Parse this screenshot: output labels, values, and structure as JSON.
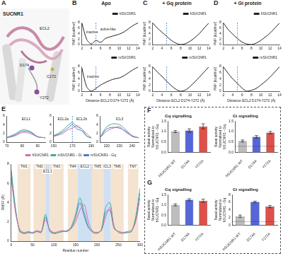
{
  "panel_letters": [
    "A",
    "B",
    "C",
    "D",
    "E",
    "F",
    "G"
  ],
  "structure": {
    "title": "SUCNR1",
    "labels": [
      "ECL2",
      "D174",
      "C172",
      "Y272"
    ]
  },
  "pmf_titles": [
    "Apo",
    "+ Gq protein",
    "+ Gi protein"
  ],
  "chart_data": [
    {
      "type": "line",
      "legend": "top right",
      "x": [
        2,
        3,
        4,
        5,
        6,
        7,
        8,
        9,
        10,
        11,
        12,
        13,
        14
      ],
      "series": [
        {
          "name": "hSUCNR1",
          "color": "#222222",
          "values": [
            7.8,
            2.0,
            0.2,
            1.5,
            0.8,
            2.2,
            2.8,
            3.3,
            3.8,
            4.6,
            5.8,
            7.0,
            7.9
          ]
        }
      ],
      "xlim": [
        2,
        14
      ],
      "xticks": [
        2,
        4,
        6,
        8,
        10,
        12,
        14
      ],
      "ylim": [
        0,
        8
      ],
      "yticks": [
        0,
        2,
        4,
        6,
        8
      ],
      "y_label": "PMF (kcal/mol)",
      "vlines": [
        5
      ],
      "annotations": [
        {
          "text": "inactive",
          "x": 4.2,
          "y": 4.6
        },
        {
          "text": "active-like",
          "x": 7.6,
          "y": 5.6
        }
      ]
    },
    {
      "type": "line",
      "legend": "top right",
      "x": [
        2,
        3,
        4,
        5,
        6,
        7,
        8,
        9,
        10,
        11,
        12,
        13,
        14
      ],
      "series": [
        {
          "name": "mSUCNR1",
          "color": "#222222",
          "values": [
            7.5,
            1.5,
            0.0,
            0.9,
            2.0,
            2.8,
            3.5,
            4.0,
            4.3,
            5.0,
            6.0,
            7.0,
            7.8
          ]
        }
      ],
      "xlim": [
        2,
        14
      ],
      "xticks": [
        2,
        4,
        6,
        8,
        10,
        12,
        14
      ],
      "ylim": [
        0,
        8
      ],
      "yticks": [
        0,
        2,
        4,
        6,
        8
      ],
      "y_label": "PMF (kcal/mol)",
      "x_label": "Distance ECL2 D174-Y272 (Å)",
      "vlines": [
        5
      ],
      "annotations": [
        {
          "text": "inactive",
          "x": 4.4,
          "y": 4.6
        }
      ]
    },
    {
      "type": "line",
      "legend": "top right",
      "x": [
        2,
        3,
        4,
        5,
        6,
        7,
        8,
        9,
        10,
        11,
        12,
        13,
        14
      ],
      "series": [
        {
          "name": "hSUCNR1",
          "color": "#222222",
          "values": [
            7.9,
            6.0,
            4.5,
            3.0,
            1.5,
            0.5,
            0.0,
            0.3,
            1.2,
            2.5,
            4.0,
            6.0,
            7.8
          ]
        }
      ],
      "xlim": [
        2,
        14
      ],
      "xticks": [
        2,
        4,
        6,
        8,
        10,
        12,
        14
      ],
      "ylim": [
        0,
        8
      ],
      "yticks": [
        0,
        2,
        4,
        6,
        8
      ],
      "y_label": "PMF (kcal/mol)",
      "vlines": [
        5
      ]
    },
    {
      "type": "line",
      "legend": "top right",
      "x": [
        2,
        3,
        4,
        5,
        6,
        7,
        8,
        9,
        10,
        11,
        12,
        13,
        14
      ],
      "series": [
        {
          "name": "mSUCNR1",
          "color": "#222222",
          "values": [
            7.9,
            6.2,
            4.8,
            3.2,
            1.8,
            0.6,
            0.0,
            0.4,
            1.5,
            3.0,
            4.5,
            6.2,
            7.8
          ]
        }
      ],
      "xlim": [
        2,
        14
      ],
      "xticks": [
        2,
        4,
        6,
        8,
        10,
        12,
        14
      ],
      "ylim": [
        0,
        8
      ],
      "yticks": [
        0,
        2,
        4,
        6,
        8
      ],
      "y_label": "PMF (kcal/mol)",
      "x_label": "Distance ECL2 D174-Y272 (Å)",
      "vlines": [
        5
      ]
    },
    {
      "type": "line",
      "legend": "top right",
      "x": [
        2,
        3,
        4,
        5,
        6,
        7,
        8,
        9,
        10,
        11,
        12,
        13,
        14
      ],
      "series": [
        {
          "name": "hSUCNR1",
          "color": "#222222",
          "values": [
            7.9,
            5.5,
            3.8,
            2.2,
            0.9,
            0.2,
            0.0,
            0.5,
            1.5,
            2.8,
            4.2,
            6.0,
            7.8
          ]
        }
      ],
      "xlim": [
        2,
        14
      ],
      "xticks": [
        2,
        4,
        6,
        8,
        10,
        12,
        14
      ],
      "ylim": [
        0,
        8
      ],
      "yticks": [
        0,
        2,
        4,
        6,
        8
      ],
      "y_label": "PMF (kcal/mol)",
      "vlines": [
        5
      ]
    },
    {
      "type": "line",
      "legend": "top right",
      "x": [
        2,
        3,
        4,
        5,
        6,
        7,
        8,
        9,
        10,
        11,
        12,
        13,
        14
      ],
      "series": [
        {
          "name": "mSUCNR1",
          "color": "#222222",
          "values": [
            7.9,
            5.8,
            4.0,
            2.5,
            1.0,
            0.0,
            0.3,
            0.9,
            2.0,
            3.2,
            4.6,
            6.2,
            7.9
          ]
        }
      ],
      "xlim": [
        2,
        14
      ],
      "xticks": [
        2,
        4,
        6,
        8,
        10,
        12,
        14
      ],
      "ylim": [
        0,
        8
      ],
      "yticks": [
        0,
        2,
        4,
        6,
        8
      ],
      "y_label": "PMF (kcal/mol)",
      "x_label": "Distance ECL2 D174-Y272 (Å)",
      "vlines": [
        5
      ]
    },
    {
      "type": "line",
      "x": [
        70,
        75,
        80,
        85,
        90,
        95
      ],
      "series": [
        {
          "name": "hSUCNR1",
          "color": "#d36fa8",
          "values": [
            1.0,
            1.4,
            2.2,
            2.0,
            1.2,
            1.0
          ]
        },
        {
          "name": "mSUCNR1 - Gi",
          "color": "#3fae8e",
          "values": [
            1.1,
            1.8,
            2.8,
            2.5,
            1.3,
            1.0
          ]
        },
        {
          "name": "mSUCNR1 - Gq",
          "color": "#4f78d0",
          "values": [
            1.0,
            1.6,
            2.5,
            2.3,
            1.2,
            1.0
          ]
        }
      ],
      "xlim": [
        70,
        95
      ],
      "xticks": [
        70,
        80,
        90
      ],
      "ylim": [
        0,
        6
      ],
      "yticks": [
        0,
        2,
        4,
        6
      ],
      "annotations": [
        {
          "text": "ECL1",
          "x": 82.5,
          "y": 5.3
        }
      ]
    },
    {
      "type": "line",
      "x": [
        150,
        155,
        160,
        165,
        170,
        175,
        180,
        185,
        190
      ],
      "series": [
        {
          "name": "hSUCNR1",
          "color": "#d36fa8",
          "values": [
            1.3,
            1.6,
            2.0,
            2.8,
            3.2,
            3.8,
            3.0,
            2.0,
            1.0
          ]
        },
        {
          "name": "mSUCNR1 - Gi",
          "color": "#3fae8e",
          "values": [
            1.5,
            2.0,
            2.8,
            3.8,
            4.5,
            3.5,
            3.0,
            1.5,
            0.9
          ]
        },
        {
          "name": "mSUCNR1 - Gq",
          "color": "#4f78d0",
          "values": [
            1.4,
            1.8,
            2.4,
            3.2,
            4.0,
            3.0,
            2.6,
            1.4,
            1.0
          ]
        }
      ],
      "xlim": [
        150,
        190
      ],
      "xticks": [
        150,
        170,
        190
      ],
      "ylim": [
        0,
        6
      ],
      "yticks": [
        0,
        2,
        4,
        6
      ],
      "vlines": [
        170
      ],
      "annotations": [
        {
          "text": "ECL2a",
          "x": 160,
          "y": 5.3
        },
        {
          "text": "ECL2b",
          "x": 180,
          "y": 5.3
        }
      ]
    },
    {
      "type": "line",
      "x": [
        215,
        220,
        225,
        230,
        235,
        240,
        245
      ],
      "series": [
        {
          "name": "hSUCNR1",
          "color": "#d36fa8",
          "values": [
            1.1,
            2.5,
            3.2,
            3.5,
            2.2,
            1.4,
            1.0
          ]
        },
        {
          "name": "mSUCNR1 - Gi",
          "color": "#3fae8e",
          "values": [
            1.2,
            3.5,
            4.2,
            4.0,
            2.8,
            1.5,
            1.0
          ]
        },
        {
          "name": "mSUCNR1 - Gq",
          "color": "#4f78d0",
          "values": [
            1.1,
            3.0,
            3.4,
            3.2,
            2.5,
            1.3,
            1.0
          ]
        }
      ],
      "xlim": [
        215,
        245
      ],
      "xticks": [
        220,
        230,
        240
      ],
      "ylim": [
        0,
        6
      ],
      "yticks": [
        0,
        2,
        4,
        6
      ],
      "annotations": [
        {
          "text": "ICL3",
          "x": 230,
          "y": 5.3
        }
      ]
    },
    {
      "type": "line",
      "legend": "top",
      "x": [
        0,
        10,
        20,
        30,
        40,
        50,
        60,
        70,
        80,
        90,
        100,
        110,
        120,
        130,
        140,
        150,
        160,
        170,
        180,
        190,
        200,
        210,
        220,
        230,
        240,
        250,
        260,
        270,
        280,
        290,
        300
      ],
      "series": [
        {
          "name": "hSUCNR1",
          "color": "#d36fa8",
          "values": [
            6.5,
            3.0,
            1.2,
            0.9,
            1.0,
            0.9,
            1.1,
            1.0,
            2.2,
            1.2,
            0.9,
            1.0,
            1.1,
            1.0,
            1.3,
            2.0,
            3.2,
            3.8,
            2.0,
            1.0,
            0.9,
            1.1,
            2.5,
            3.5,
            1.4,
            1.0,
            0.9,
            1.0,
            1.1,
            2.0,
            4.5
          ]
        },
        {
          "name": "mSUCNR1 - Gi",
          "color": "#3fae8e",
          "values": [
            7.5,
            3.5,
            1.0,
            0.8,
            0.9,
            0.8,
            1.0,
            1.0,
            2.8,
            1.0,
            0.8,
            0.9,
            1.0,
            1.0,
            1.5,
            2.8,
            4.5,
            3.0,
            1.5,
            0.9,
            0.8,
            1.2,
            3.5,
            4.0,
            1.5,
            0.9,
            0.8,
            0.9,
            1.0,
            2.5,
            5.5
          ]
        },
        {
          "name": "mSUCNR1 - Gq",
          "color": "#4f78d0",
          "values": [
            7.0,
            3.2,
            1.1,
            0.8,
            0.9,
            0.9,
            1.0,
            0.9,
            2.5,
            1.1,
            0.8,
            0.9,
            1.0,
            1.1,
            1.4,
            2.4,
            4.0,
            2.6,
            1.4,
            1.0,
            0.9,
            1.1,
            3.0,
            3.2,
            1.3,
            1.0,
            0.9,
            0.9,
            1.0,
            2.2,
            5.0
          ]
        }
      ],
      "xlim": [
        0,
        300
      ],
      "xticks": [
        0,
        50,
        100,
        150,
        200,
        250,
        300
      ],
      "ylim": [
        0,
        8
      ],
      "yticks": [
        0,
        2,
        4,
        6,
        8
      ],
      "x_label": "Residue number",
      "y_label": "RMSF (Å)",
      "bands": [
        {
          "label": "TM1",
          "start": 15,
          "end": 45,
          "color": "#f3e3cf"
        },
        {
          "label": "TM2",
          "start": 52,
          "end": 80,
          "color": "#f3e3cf"
        },
        {
          "label": "ECL1",
          "start": 80,
          "end": 90,
          "color": "#cfe0f3"
        },
        {
          "label": "TM3",
          "start": 90,
          "end": 122,
          "color": "#f3e3cf"
        },
        {
          "label": "TM4",
          "start": 132,
          "end": 155,
          "color": "#f3e3cf"
        },
        {
          "label": "ECL2",
          "start": 155,
          "end": 188,
          "color": "#cfe0f3"
        },
        {
          "label": "TM5",
          "start": 188,
          "end": 215,
          "color": "#f3e3cf"
        },
        {
          "label": "ICL3",
          "start": 215,
          "end": 232,
          "color": "#cfe0f3"
        },
        {
          "label": "TM6",
          "start": 232,
          "end": 262,
          "color": "#f3e3cf"
        },
        {
          "label": "TM7",
          "start": 272,
          "end": 296,
          "color": "#f3e3cf"
        }
      ]
    },
    {
      "type": "bar",
      "title": "Gq signalling",
      "categories": [
        "hSUCNR1 WT",
        "D174A",
        "Y272A"
      ],
      "values": [
        1.0,
        1.05,
        1.25
      ],
      "errors": [
        0.05,
        0.08,
        0.12
      ],
      "colors": [
        "#bdbdbd",
        "#5566d8",
        "#e0504a"
      ],
      "ylim": [
        0,
        1.5
      ],
      "yticks": [
        {
          "value": 0,
          "label": "0.0"
        },
        0.5,
        {
          "value": 1,
          "label": "1.0"
        },
        1.5
      ],
      "y_label": "Basal activity Normalized to hSUCNR1 - Gq"
    },
    {
      "type": "bar",
      "title": "Gi signalling",
      "categories": [
        "hSUCNR1 WT",
        "D174A",
        "Y272A"
      ],
      "values": [
        0.55,
        0.75,
        0.95
      ],
      "errors": [
        0.05,
        0.06,
        0.06
      ],
      "colors": [
        "#bdbdbd",
        "#5566d8",
        "#e0504a"
      ],
      "ylim": [
        0,
        1.5
      ],
      "yticks": [
        {
          "value": 0,
          "label": "0.0"
        },
        0.5,
        {
          "value": 1,
          "label": "1.0"
        },
        1.5
      ],
      "y_label": "Basal activity Normalized to hSUCNR1 - Gq",
      "reference_line": 0.3
    },
    {
      "type": "bar",
      "title": "Gq signalling",
      "categories": [
        "mSUCNR1 WT",
        "D174A",
        "Y272A"
      ],
      "values": [
        1.0,
        1.25,
        1.2
      ],
      "errors": [
        0.05,
        0.05,
        0.08
      ],
      "colors": [
        "#bdbdbd",
        "#5566d8",
        "#e0504a"
      ],
      "ylim": [
        0,
        1.5
      ],
      "yticks": [
        {
          "value": 0,
          "label": "0.0"
        },
        0.5,
        {
          "value": 1,
          "label": "1.0"
        },
        1.5
      ],
      "y_label": "Basal activity Normalized to hSUCNR1 - Gq"
    },
    {
      "type": "bar",
      "title": "Gi signalling",
      "categories": [
        "mSUCNR1 WT",
        "D174A",
        "Y272A"
      ],
      "values": [
        2.4,
        6.1,
        4.9
      ],
      "errors": [
        0.3,
        0.2,
        0.3
      ],
      "colors": [
        "#bdbdbd",
        "#5566d8",
        "#e0504a"
      ],
      "ylim": [
        0,
        8
      ],
      "yticks": [
        0,
        2,
        4,
        6,
        8
      ],
      "y_label": "Basal activity Normalized to hSUCNR1 - Gq",
      "reference_line": 1
    }
  ]
}
